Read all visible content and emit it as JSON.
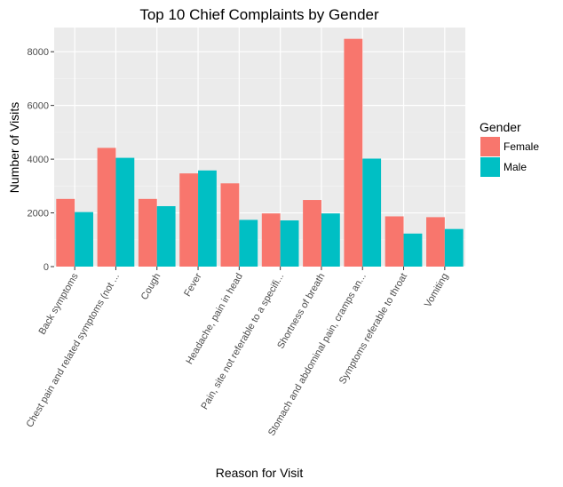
{
  "chart_data": {
    "type": "bar",
    "title": "Top 10 Chief Complaints by Gender",
    "xlabel": "Reason for Visit",
    "ylabel": "Number of Visits",
    "categories": [
      "Back symptoms",
      "Chest pain and related symptoms (not ...",
      "Cough",
      "Fever",
      "Headache, pain in head",
      "Pain, site not referable to a specifi...",
      "Shortness of breath",
      "Stomach and abdominal pain, cramps an...",
      "Symptoms referable to throat",
      "Vomiting"
    ],
    "series": [
      {
        "name": "Female",
        "color": "#F8766D",
        "values": [
          2520,
          4420,
          2520,
          3470,
          3100,
          1980,
          2480,
          8480,
          1870,
          1840
        ]
      },
      {
        "name": "Male",
        "color": "#00BFC4",
        "values": [
          2030,
          4050,
          2250,
          3580,
          1740,
          1720,
          1980,
          4020,
          1230,
          1400
        ]
      }
    ],
    "ylim": [
      0,
      8900
    ],
    "yticks": [
      0,
      2000,
      4000,
      6000,
      8000
    ],
    "legend": {
      "title": "Gender",
      "position": "right"
    },
    "grid": true,
    "panel_color": "#EBEBEB"
  }
}
